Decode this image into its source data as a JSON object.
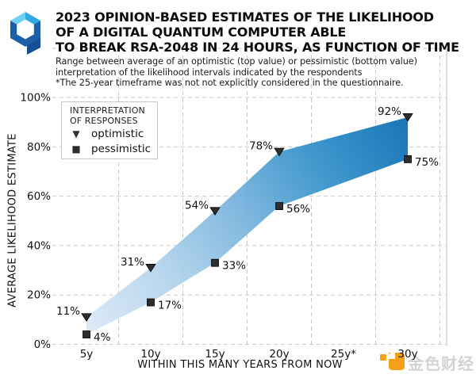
{
  "header": {
    "title_lines": [
      "2023 OPINION-BASED ESTIMATES OF THE LIKELIHOOD",
      "OF A DIGITAL QUANTUM COMPUTER ABLE",
      "TO BREAK RSA-2048 IN 24 HOURS, AS FUNCTION OF TIME"
    ],
    "subtitle_lines": [
      "Range between average of an optimistic (top value) or pessimistic (bottom value)",
      "interpretation of the likelihood intervals indicated by the respondents",
      "*The 25-year timeframe was not not explicitly considered in the questionnaire."
    ]
  },
  "logo": {
    "name": "quantum-hexagon-logo",
    "colors": {
      "top_left": "#72d1f3",
      "top_right": "#2fa9e2",
      "sides": "#1c5ea8",
      "tail": "#134f92"
    }
  },
  "legend": {
    "title_lines": [
      "INTERPRETATION",
      "OF RESPONSES"
    ],
    "items": [
      {
        "glyph": "▼",
        "label": "optimistic"
      },
      {
        "glyph": "■",
        "label": "pessimistic"
      }
    ]
  },
  "chart_data": {
    "type": "area",
    "title": "2023 opinion-based estimates of the likelihood of a digital quantum computer able to break RSA-2048 in 24 hours, as function of time",
    "xlabel": "WITHIN THIS MANY YEARS FROM NOW",
    "ylabel": "AVERAGE LIKELIHOOD ESTIMATE",
    "x_ticks": [
      {
        "v": 5,
        "label": "5y"
      },
      {
        "v": 10,
        "label": "10y"
      },
      {
        "v": 15,
        "label": "15y"
      },
      {
        "v": 20,
        "label": "20y"
      },
      {
        "v": 25,
        "label": "25y*"
      },
      {
        "v": 30,
        "label": "30y"
      }
    ],
    "x_values": [
      5,
      10,
      15,
      20,
      30
    ],
    "series": [
      {
        "name": "optimistic",
        "marker": "triangle-down",
        "values": [
          11,
          31,
          54,
          78,
          92
        ]
      },
      {
        "name": "pessimistic",
        "marker": "square",
        "values": [
          4,
          17,
          33,
          56,
          75
        ]
      }
    ],
    "ylim": [
      0,
      100
    ],
    "yticks": [
      0,
      20,
      40,
      60,
      80,
      100
    ],
    "ytick_suffix": "%",
    "grid": "dashed",
    "grid_x_positions": [
      7.5,
      12.5,
      17.5,
      22.5,
      27.5,
      32.5
    ],
    "grid_color": "#c9c9c9",
    "band_gradient": [
      "#dce9f6",
      "#b3d4ec",
      "#7ab4dd",
      "#3290c9",
      "#0b6cb3"
    ],
    "marker_color": "#2e2e2e"
  },
  "watermark": {
    "text": "金色财经",
    "logo_color": "#f6a01a",
    "text_color": "#c9c9c9"
  }
}
